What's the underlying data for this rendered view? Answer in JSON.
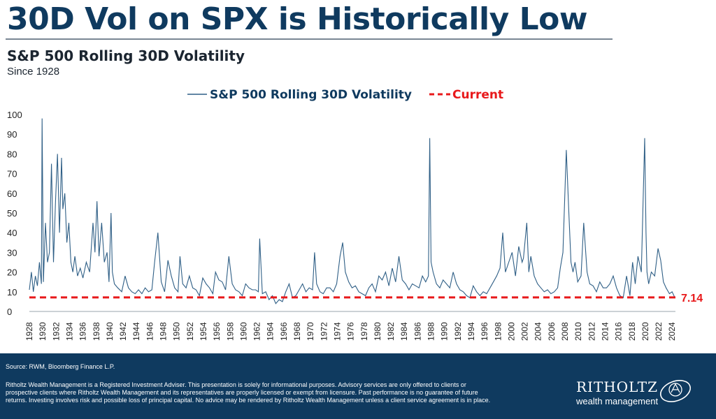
{
  "headline": "30D Vol on SPX is Historically Low",
  "subtitle": "S&P 500 Rolling 30D Volatility",
  "since": "Since 1928",
  "footer": {
    "source": "Source: RWM, Bloomberg Finance L.P.",
    "disclaimer": "Ritholtz Wealth Management is a Registered Investment Adviser. This presentation is solely for informational purposes. Advisory services are only offered to clients or prospective clients where Ritholtz Wealth Management and its representatives are properly licensed or exempt from licensure. Past performance is no guarantee of future returns. Investing involves risk and possible loss of principal capital. No advice may be rendered by Ritholtz Wealth Management unless a client service agreement is in place.",
    "logo_name": "RITHOLTZ",
    "logo_sub": "wealth management"
  },
  "chart_data": {
    "type": "line",
    "title": "S&P 500 Rolling 30D Volatility",
    "legend": [
      {
        "name": "S&P 500 Rolling 30D Volatility",
        "style": "solid",
        "color": "#2f5f86"
      },
      {
        "name": "Current",
        "style": "dashed",
        "color": "#e8191b"
      }
    ],
    "legend_position": "top-center",
    "ylim": [
      0,
      100
    ],
    "yticks": [
      0,
      10,
      20,
      30,
      40,
      50,
      60,
      70,
      80,
      90,
      100
    ],
    "xlim": [
      1928,
      2024.5
    ],
    "xticks": [
      "1928",
      "1930",
      "1932",
      "1934",
      "1936",
      "1938",
      "1940",
      "1942",
      "1944",
      "1946",
      "1948",
      "1950",
      "1952",
      "1954",
      "1956",
      "1958",
      "1960",
      "1962",
      "1964",
      "1966",
      "1968",
      "1970",
      "1972",
      "1974",
      "1976",
      "1978",
      "1980",
      "1982",
      "1984",
      "1986",
      "1988",
      "1990",
      "1992",
      "1994",
      "1996",
      "1998",
      "2000",
      "2002",
      "2004",
      "2006",
      "2008",
      "2010",
      "2012",
      "2014",
      "2016",
      "2018",
      "2020",
      "2022",
      "2024"
    ],
    "grid": false,
    "current_value": 7.14,
    "current_label": "7.14",
    "series": [
      {
        "name": "S&P 500 Rolling 30D Volatility",
        "x": [
          1928.0,
          1928.3,
          1928.6,
          1928.9,
          1929.2,
          1929.5,
          1929.8,
          1929.9,
          1930.1,
          1930.4,
          1930.7,
          1931.0,
          1931.3,
          1931.6,
          1931.9,
          1932.2,
          1932.5,
          1932.8,
          1933.0,
          1933.3,
          1933.6,
          1933.9,
          1934.2,
          1934.5,
          1934.8,
          1935.2,
          1935.6,
          1936.0,
          1936.5,
          1937.0,
          1937.5,
          1937.8,
          1938.1,
          1938.4,
          1938.8,
          1939.2,
          1939.6,
          1939.9,
          1940.2,
          1940.4,
          1940.7,
          1941.2,
          1941.8,
          1942.3,
          1942.8,
          1943.3,
          1943.8,
          1944.3,
          1944.8,
          1945.3,
          1945.8,
          1946.3,
          1946.7,
          1947.2,
          1947.7,
          1948.2,
          1948.7,
          1949.2,
          1949.7,
          1950.2,
          1950.5,
          1950.9,
          1951.4,
          1951.9,
          1952.4,
          1952.9,
          1953.4,
          1953.9,
          1954.4,
          1954.9,
          1955.4,
          1955.8,
          1956.3,
          1956.8,
          1957.3,
          1957.8,
          1958.3,
          1958.8,
          1959.3,
          1959.8,
          1960.3,
          1960.8,
          1961.3,
          1961.8,
          1962.2,
          1962.4,
          1962.8,
          1963.3,
          1963.8,
          1964.3,
          1964.8,
          1965.3,
          1965.8,
          1966.3,
          1966.8,
          1967.3,
          1967.8,
          1968.3,
          1968.8,
          1969.3,
          1969.8,
          1970.3,
          1970.6,
          1970.9,
          1971.4,
          1971.9,
          1972.4,
          1972.9,
          1973.4,
          1973.9,
          1974.4,
          1974.8,
          1975.2,
          1975.7,
          1976.2,
          1976.7,
          1977.2,
          1977.7,
          1978.2,
          1978.7,
          1979.2,
          1979.7,
          1980.2,
          1980.7,
          1981.2,
          1981.7,
          1982.2,
          1982.7,
          1983.2,
          1983.7,
          1984.2,
          1984.7,
          1985.2,
          1985.7,
          1986.2,
          1986.7,
          1987.2,
          1987.6,
          1987.8,
          1988.0,
          1988.3,
          1988.8,
          1989.3,
          1989.8,
          1990.3,
          1990.8,
          1991.3,
          1991.8,
          1992.3,
          1992.8,
          1993.3,
          1993.8,
          1994.3,
          1994.8,
          1995.3,
          1995.8,
          1996.3,
          1996.8,
          1997.3,
          1997.8,
          1998.3,
          1998.7,
          1999.1,
          1999.6,
          2000.1,
          2000.6,
          2001.1,
          2001.6,
          2001.8,
          2002.3,
          2002.6,
          2002.9,
          2003.4,
          2003.9,
          2004.4,
          2004.9,
          2005.4,
          2005.9,
          2006.4,
          2006.9,
          2007.3,
          2007.7,
          2008.2,
          2008.6,
          2008.9,
          2009.2,
          2009.5,
          2009.9,
          2010.4,
          2010.8,
          2011.3,
          2011.7,
          2012.2,
          2012.7,
          2013.2,
          2013.7,
          2014.2,
          2014.7,
          2015.2,
          2015.7,
          2016.2,
          2016.7,
          2017.2,
          2017.7,
          2018.1,
          2018.5,
          2018.9,
          2019.4,
          2019.9,
          2020.1,
          2020.25,
          2020.5,
          2020.9,
          2021.4,
          2021.9,
          2022.3,
          2022.7,
          2023.1,
          2023.6,
          2024.0,
          2024.4
        ],
        "values": [
          11,
          20,
          10,
          18,
          13,
          25,
          14,
          98,
          15,
          45,
          25,
          30,
          75,
          25,
          55,
          80,
          40,
          78,
          52,
          60,
          35,
          45,
          25,
          20,
          28,
          18,
          22,
          17,
          25,
          20,
          45,
          30,
          56,
          28,
          45,
          25,
          30,
          15,
          50,
          20,
          14,
          12,
          10,
          18,
          12,
          10,
          9,
          11,
          9,
          12,
          10,
          11,
          25,
          40,
          15,
          10,
          26,
          18,
          12,
          10,
          28,
          14,
          12,
          18,
          12,
          11,
          8,
          17,
          14,
          12,
          9,
          20,
          16,
          15,
          11,
          28,
          14,
          11,
          10,
          8,
          14,
          12,
          11,
          11,
          10,
          37,
          9,
          10,
          6,
          8,
          4,
          6,
          5,
          10,
          14,
          7,
          8,
          11,
          14,
          10,
          12,
          11,
          30,
          14,
          10,
          9,
          12,
          12,
          10,
          14,
          28,
          35,
          20,
          15,
          12,
          13,
          10,
          9,
          8,
          12,
          14,
          10,
          18,
          16,
          20,
          13,
          22,
          15,
          28,
          16,
          14,
          11,
          14,
          13,
          12,
          18,
          15,
          18,
          88,
          25,
          20,
          14,
          12,
          16,
          14,
          12,
          20,
          14,
          11,
          10,
          8,
          7,
          13,
          10,
          8,
          10,
          9,
          12,
          15,
          18,
          22,
          40,
          20,
          25,
          30,
          18,
          33,
          25,
          27,
          45,
          20,
          28,
          18,
          14,
          12,
          10,
          11,
          9,
          10,
          12,
          22,
          30,
          82,
          48,
          25,
          20,
          25,
          15,
          18,
          45,
          20,
          14,
          13,
          10,
          15,
          12,
          12,
          14,
          18,
          12,
          8,
          7,
          18,
          8,
          25,
          14,
          28,
          20,
          88,
          40,
          20,
          14,
          20,
          18,
          32,
          26,
          15,
          12,
          9,
          10,
          7.14
        ]
      }
    ]
  }
}
